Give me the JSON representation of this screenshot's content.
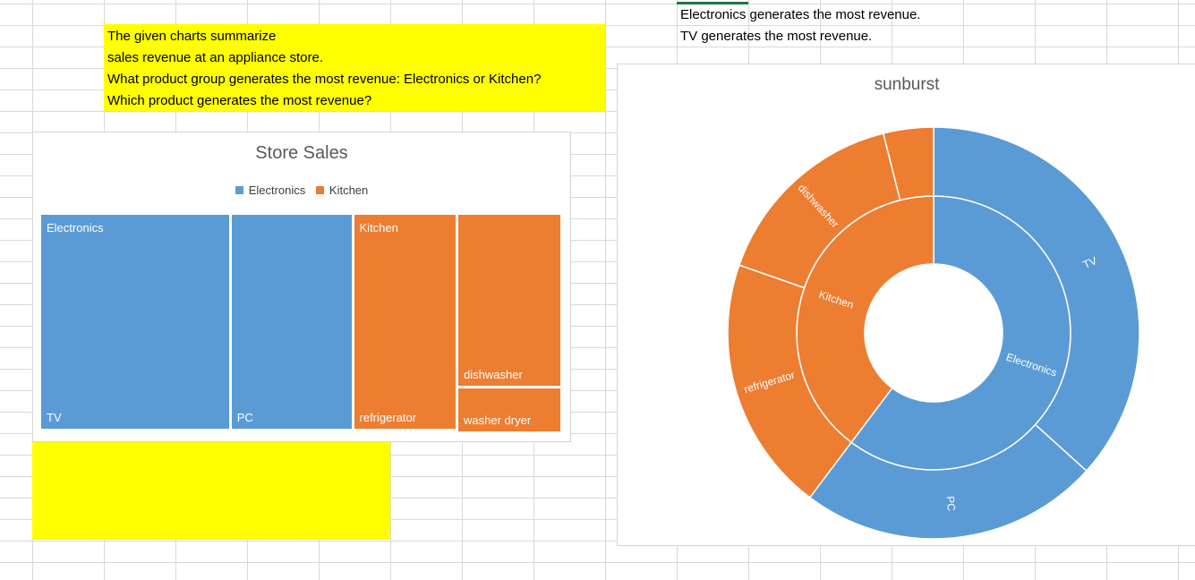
{
  "notes": {
    "lines": [
      "The given charts summarize",
      "sales revenue at an appliance store.",
      "What product group generates the most revenue: Electronics or Kitchen?",
      "Which product generates the most revenue?"
    ]
  },
  "answers": {
    "lines": [
      "Electronics generates the most revenue.",
      "TV generates the most revenue."
    ]
  },
  "colors": {
    "electronics": "#5b9bd5",
    "kitchen": "#ed7d31",
    "highlight": "#ffff00"
  },
  "chart_data": [
    {
      "type": "treemap",
      "title": "Store Sales",
      "legend": [
        "Electronics",
        "Kitchen"
      ],
      "legend_position": "top",
      "groups": [
        {
          "name": "Electronics",
          "items": [
            {
              "name": "TV",
              "value": 42
            },
            {
              "name": "PC",
              "value": 27
            }
          ]
        },
        {
          "name": "Kitchen",
          "items": [
            {
              "name": "refrigerator",
              "value": 23
            },
            {
              "name": "dishwasher",
              "value": 18
            },
            {
              "name": "washer dryer",
              "value": 4.5
            }
          ]
        }
      ]
    },
    {
      "type": "sunburst",
      "title": "sunburst",
      "inner_ring": [
        {
          "name": "Electronics",
          "value": 69
        },
        {
          "name": "Kitchen",
          "value": 45.5
        }
      ],
      "outer_ring": [
        {
          "name": "TV",
          "group": "Electronics",
          "value": 42
        },
        {
          "name": "PC",
          "group": "Electronics",
          "value": 27
        },
        {
          "name": "refrigerator",
          "group": "Kitchen",
          "value": 23
        },
        {
          "name": "dishwasher",
          "group": "Kitchen",
          "value": 18
        },
        {
          "name": "",
          "group": "Kitchen",
          "value": 4.5
        }
      ]
    }
  ]
}
